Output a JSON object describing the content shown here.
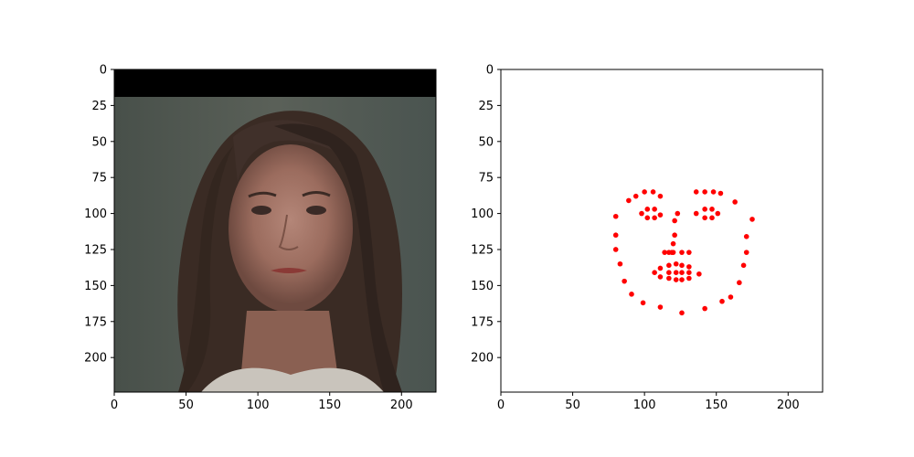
{
  "chart_data": [
    {
      "type": "image",
      "xlim": [
        0,
        224
      ],
      "ylim": [
        224,
        0
      ],
      "x_ticks": [
        0,
        50,
        100,
        150,
        200
      ],
      "y_ticks": [
        0,
        25,
        50,
        75,
        100,
        125,
        150,
        175,
        200
      ],
      "x_tick_labels": [
        "0",
        "50",
        "100",
        "150",
        "200"
      ],
      "y_tick_labels": [
        "0",
        "25",
        "50",
        "75",
        "100",
        "125",
        "150",
        "175",
        "200"
      ],
      "grid": false
    },
    {
      "type": "scatter",
      "xlim": [
        0,
        224
      ],
      "ylim": [
        224,
        0
      ],
      "x_ticks": [
        0,
        50,
        100,
        150,
        200
      ],
      "y_ticks": [
        0,
        25,
        50,
        75,
        100,
        125,
        150,
        175,
        200
      ],
      "x_tick_labels": [
        "0",
        "50",
        "100",
        "150",
        "200"
      ],
      "y_tick_labels": [
        "0",
        "25",
        "50",
        "75",
        "100",
        "125",
        "150",
        "175",
        "200"
      ],
      "grid": false,
      "marker_color": "#ff0000",
      "points": [
        [
          80,
          102
        ],
        [
          80,
          115
        ],
        [
          80,
          125
        ],
        [
          83,
          135
        ],
        [
          86,
          147
        ],
        [
          91,
          156
        ],
        [
          99,
          162
        ],
        [
          111,
          165
        ],
        [
          126,
          169
        ],
        [
          142,
          166
        ],
        [
          154,
          161
        ],
        [
          160,
          158
        ],
        [
          166,
          148
        ],
        [
          169,
          136
        ],
        [
          171,
          127
        ],
        [
          171,
          116
        ],
        [
          175,
          104
        ],
        [
          89,
          91
        ],
        [
          94,
          88
        ],
        [
          100,
          85
        ],
        [
          106,
          85
        ],
        [
          111,
          88
        ],
        [
          136,
          85
        ],
        [
          142,
          85
        ],
        [
          148,
          85
        ],
        [
          153,
          86
        ],
        [
          163,
          92
        ],
        [
          121,
          105
        ],
        [
          121,
          115
        ],
        [
          120,
          121
        ],
        [
          119,
          127
        ],
        [
          114,
          127
        ],
        [
          117,
          127
        ],
        [
          120,
          127
        ],
        [
          126,
          127
        ],
        [
          131,
          127
        ],
        [
          98,
          100
        ],
        [
          102,
          97
        ],
        [
          107,
          97
        ],
        [
          111,
          101
        ],
        [
          107,
          103
        ],
        [
          102,
          103
        ],
        [
          136,
          100
        ],
        [
          142,
          97
        ],
        [
          147,
          97
        ],
        [
          151,
          100
        ],
        [
          147,
          103
        ],
        [
          142,
          103
        ],
        [
          107,
          141
        ],
        [
          111,
          138
        ],
        [
          117,
          136
        ],
        [
          122,
          135
        ],
        [
          126,
          136
        ],
        [
          131,
          137
        ],
        [
          138,
          142
        ],
        [
          131,
          145
        ],
        [
          126,
          146
        ],
        [
          122,
          146
        ],
        [
          117,
          145
        ],
        [
          111,
          144
        ],
        [
          117,
          141
        ],
        [
          122,
          141
        ],
        [
          126,
          141
        ],
        [
          131,
          141
        ],
        [
          123,
          100
        ]
      ]
    }
  ]
}
